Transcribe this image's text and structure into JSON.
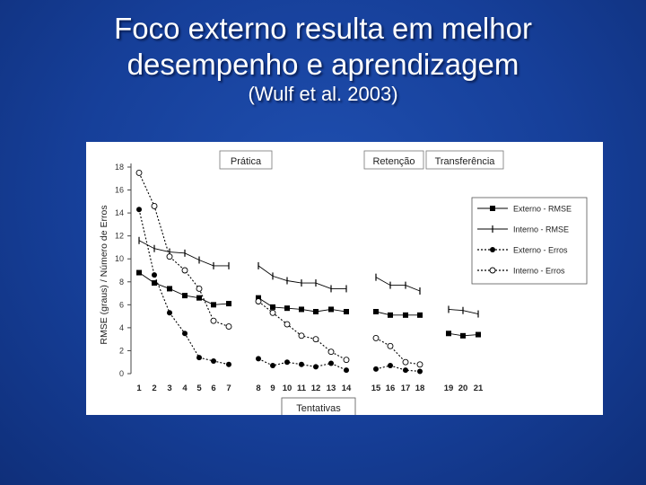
{
  "slide": {
    "title_line1": "Foco externo resulta em melhor",
    "title_line2": "desempenho e aprendizagem",
    "subtitle": "(Wulf et al. 2003)"
  },
  "chart_data": {
    "type": "line",
    "ylabel": "RMSE (graus) / Número de Erros",
    "xlabel": "Tentativas",
    "ylim": [
      0,
      18
    ],
    "yticks": [
      0,
      2,
      4,
      6,
      8,
      10,
      12,
      14,
      16,
      18
    ],
    "xticks": [
      "1",
      "2",
      "3",
      "4",
      "5",
      "6",
      "7",
      "8",
      "9",
      "10",
      "11",
      "12",
      "13",
      "14",
      "15",
      "16",
      "17",
      "18",
      "19",
      "20",
      "21"
    ],
    "phases": [
      {
        "label": "Prática",
        "x": [
          1,
          2,
          3,
          4,
          5,
          6,
          7
        ]
      },
      {
        "label": "Prática",
        "x": [
          8,
          9,
          10,
          11,
          12,
          13,
          14
        ]
      },
      {
        "label": "Retenção",
        "x": [
          15,
          16,
          17,
          18
        ]
      },
      {
        "label": "Transferência",
        "x": [
          19,
          20,
          21
        ]
      }
    ],
    "phase_labels": [
      "Prática",
      "Retenção",
      "Transferência"
    ],
    "grid": false,
    "legend_position": "right",
    "series": [
      {
        "name": "Externo - RMSE",
        "marker": "filled-square",
        "line": "solid",
        "values": [
          8.8,
          7.9,
          7.4,
          6.8,
          6.6,
          6.0,
          6.1,
          6.6,
          5.8,
          5.7,
          5.6,
          5.4,
          5.6,
          5.4,
          5.4,
          5.1,
          5.1,
          5.1,
          3.5,
          3.3,
          3.4
        ]
      },
      {
        "name": "Interno - RMSE",
        "marker": "tick",
        "line": "solid",
        "values": [
          11.6,
          10.9,
          10.6,
          10.5,
          9.9,
          9.4,
          9.4,
          9.4,
          8.5,
          8.1,
          7.9,
          7.9,
          7.4,
          7.4,
          8.4,
          7.7,
          7.7,
          7.2,
          5.6,
          5.5,
          5.2
        ]
      },
      {
        "name": "Externo - Erros",
        "marker": "filled-circle",
        "line": "dotted",
        "values": [
          14.3,
          8.6,
          5.3,
          3.5,
          1.4,
          1.1,
          0.8,
          1.3,
          0.7,
          1.0,
          0.8,
          0.6,
          0.9,
          0.3,
          0.4,
          0.7,
          0.3,
          0.2,
          null,
          null,
          null
        ]
      },
      {
        "name": "Interno - Erros",
        "marker": "open-circle",
        "line": "dotted",
        "values": [
          17.5,
          14.6,
          10.2,
          9.0,
          7.4,
          4.6,
          4.1,
          6.3,
          5.3,
          4.3,
          3.3,
          3.0,
          1.9,
          1.2,
          3.1,
          2.4,
          1.0,
          0.8,
          null,
          null,
          null
        ]
      }
    ]
  },
  "colors": {
    "background": "#163f99",
    "chart_background": "#ffffff",
    "series": "#000000",
    "label_box": "#ffffff"
  }
}
